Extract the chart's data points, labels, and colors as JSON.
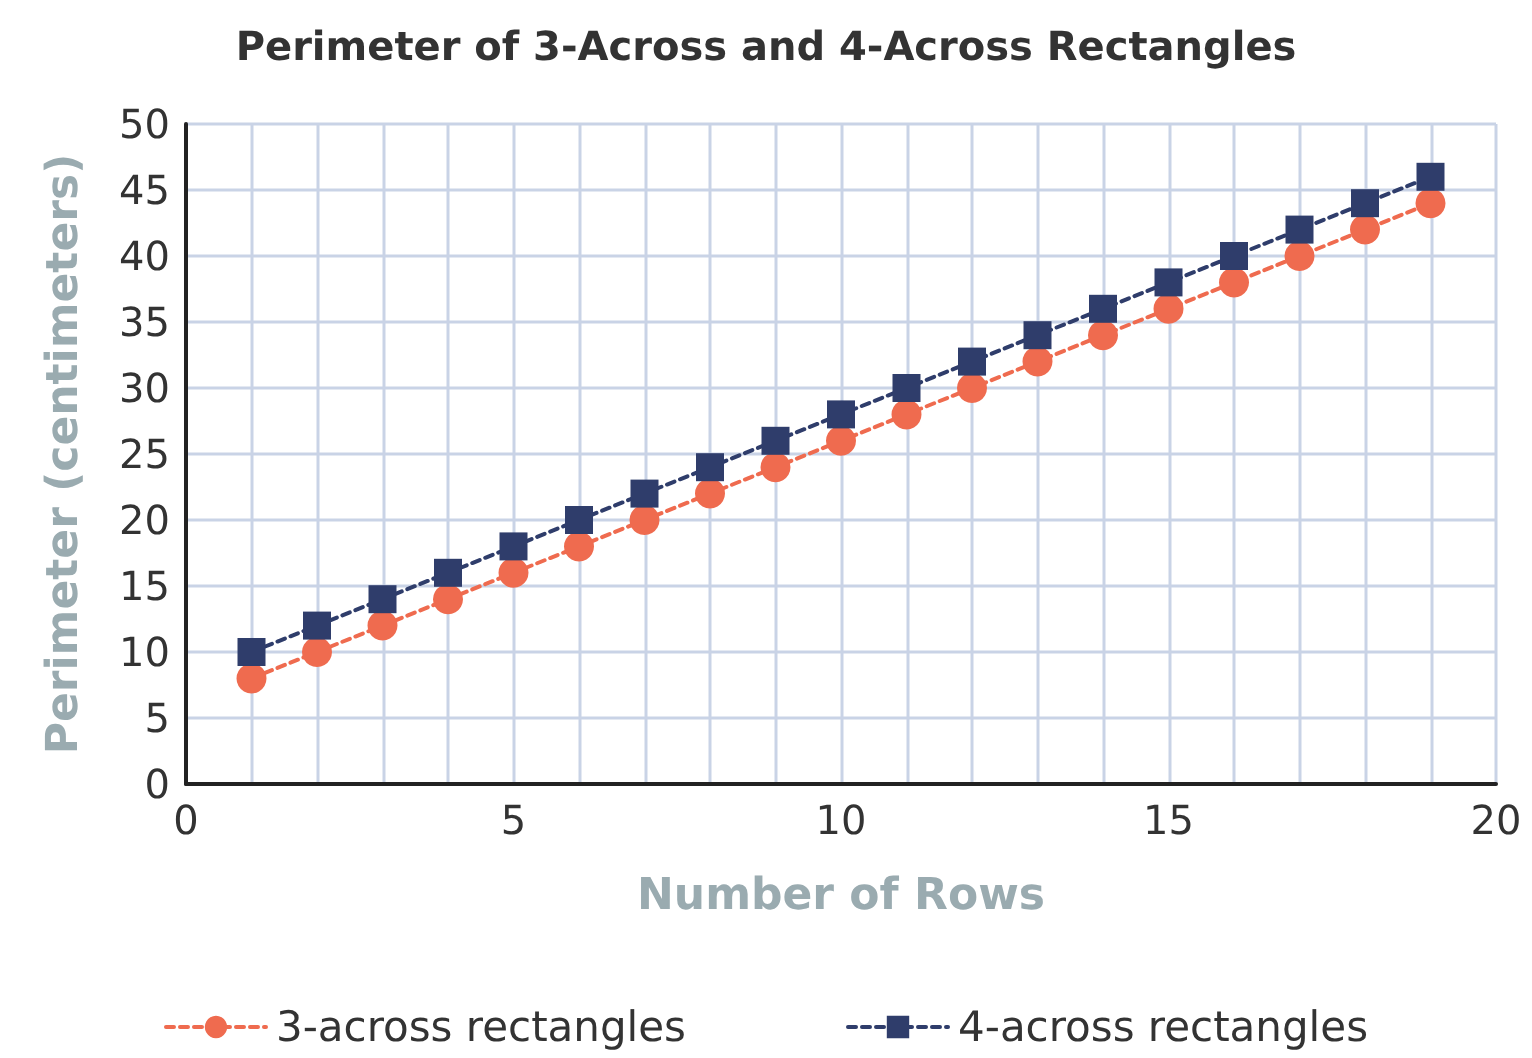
{
  "chart_data": {
    "type": "line",
    "title": "Perimeter of 3-Across and 4-Across Rectangles",
    "xlabel": "Number of Rows",
    "ylabel": "Perimeter (centimeters)",
    "x": [
      1,
      2,
      3,
      4,
      5,
      6,
      7,
      8,
      9,
      10,
      11,
      12,
      13,
      14,
      15,
      16,
      17,
      18,
      19
    ],
    "series": [
      {
        "name": "3-across rectangles",
        "color": "#ef6b4f",
        "marker": "circle",
        "values": [
          8,
          10,
          12,
          14,
          16,
          18,
          20,
          22,
          24,
          26,
          28,
          30,
          32,
          34,
          36,
          38,
          40,
          42,
          44
        ]
      },
      {
        "name": "4-across rectangles",
        "color": "#2f3d6b",
        "marker": "square",
        "values": [
          10,
          12,
          14,
          16,
          18,
          20,
          22,
          24,
          26,
          28,
          30,
          32,
          34,
          36,
          38,
          40,
          42,
          44,
          46
        ]
      }
    ],
    "xlim": [
      0,
      20
    ],
    "xticks": [
      0,
      {
        "value": 1,
        "label": null
      },
      {
        "value": 2,
        "label": null
      },
      {
        "value": 3,
        "label": null
      },
      {
        "value": 4,
        "label": null
      },
      5,
      {
        "value": 6,
        "label": null
      },
      {
        "value": 7,
        "label": null
      },
      {
        "value": 8,
        "label": null
      },
      {
        "value": 9,
        "label": null
      },
      10,
      {
        "value": 11,
        "label": null
      },
      {
        "value": 12,
        "label": null
      },
      {
        "value": 13,
        "label": null
      },
      {
        "value": 14,
        "label": null
      },
      15,
      {
        "value": 16,
        "label": null
      },
      {
        "value": 17,
        "label": null
      },
      {
        "value": 18,
        "label": null
      },
      {
        "value": 19,
        "label": null
      },
      20
    ],
    "ylim": [
      0,
      50
    ],
    "yticks": [
      0,
      5,
      10,
      15,
      20,
      25,
      30,
      35,
      40,
      45,
      50
    ],
    "grid": true,
    "legend": "bottom",
    "line_style": "dashed"
  }
}
